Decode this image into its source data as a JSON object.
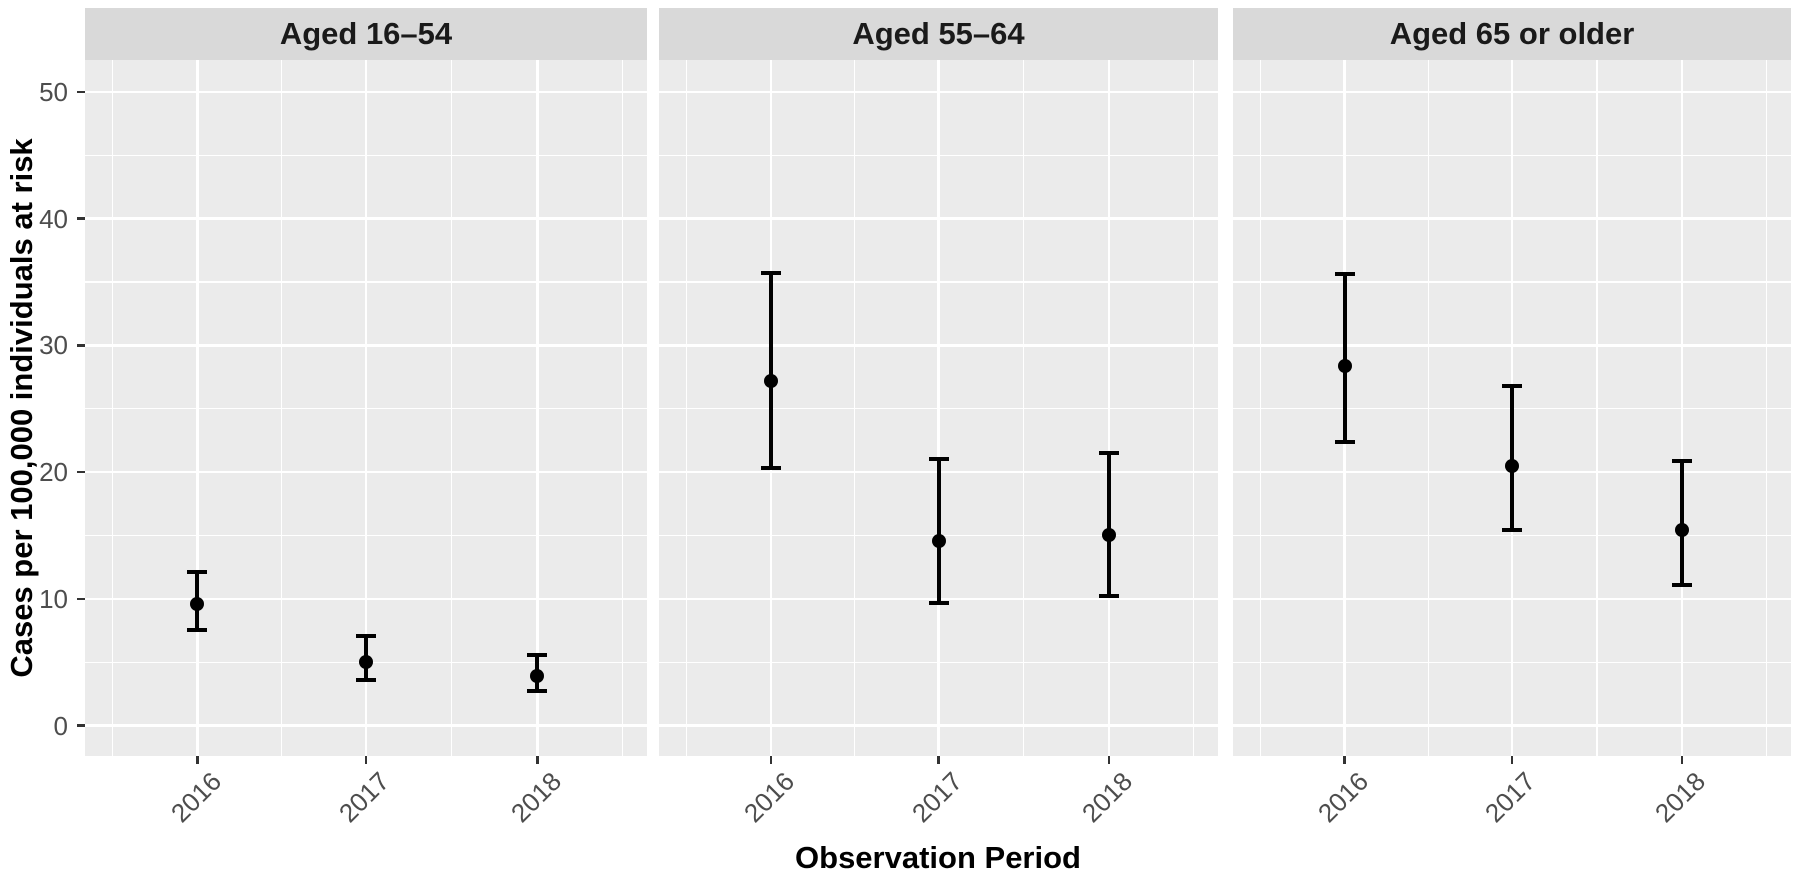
{
  "chart_data": {
    "type": "scatter",
    "subtype": "point-range with error bars, faceted",
    "title": "",
    "xlabel": "Observation Period",
    "ylabel": "Cases per 100,000 individuals at risk",
    "x_categories": [
      "2016",
      "2017",
      "2018"
    ],
    "y_ticks": [
      0,
      10,
      20,
      30,
      40,
      50
    ],
    "ylim": [
      -2.4,
      52.4
    ],
    "grid": {
      "major": true,
      "minor": true,
      "style": "white gridlines on gray panel background"
    },
    "legend_position": "none",
    "facets": [
      {
        "label": "Aged 16–54",
        "points": [
          {
            "x": "2016",
            "est": 9.6,
            "lo": 7.5,
            "hi": 12.1
          },
          {
            "x": "2017",
            "est": 5.0,
            "lo": 3.6,
            "hi": 7.1
          },
          {
            "x": "2018",
            "est": 3.9,
            "lo": 2.7,
            "hi": 5.6
          }
        ]
      },
      {
        "label": "Aged 55–64",
        "points": [
          {
            "x": "2016",
            "est": 27.2,
            "lo": 20.3,
            "hi": 35.7
          },
          {
            "x": "2017",
            "est": 14.6,
            "lo": 9.7,
            "hi": 21.0
          },
          {
            "x": "2018",
            "est": 15.0,
            "lo": 10.2,
            "hi": 21.5
          }
        ]
      },
      {
        "label": "Aged 65 or older",
        "points": [
          {
            "x": "2016",
            "est": 28.4,
            "lo": 22.4,
            "hi": 35.6
          },
          {
            "x": "2017",
            "est": 20.5,
            "lo": 15.4,
            "hi": 26.8
          },
          {
            "x": "2018",
            "est": 15.4,
            "lo": 11.1,
            "hi": 20.9
          }
        ]
      }
    ],
    "colors": {
      "panel_bg": "#ebebeb",
      "strip_bg": "#d9d9d9",
      "gridline": "#ffffff",
      "point": "#000000",
      "axis_text": "#4d4d4d",
      "title_text": "#000000",
      "tick_mark": "#333333",
      "background": "#ffffff"
    }
  }
}
